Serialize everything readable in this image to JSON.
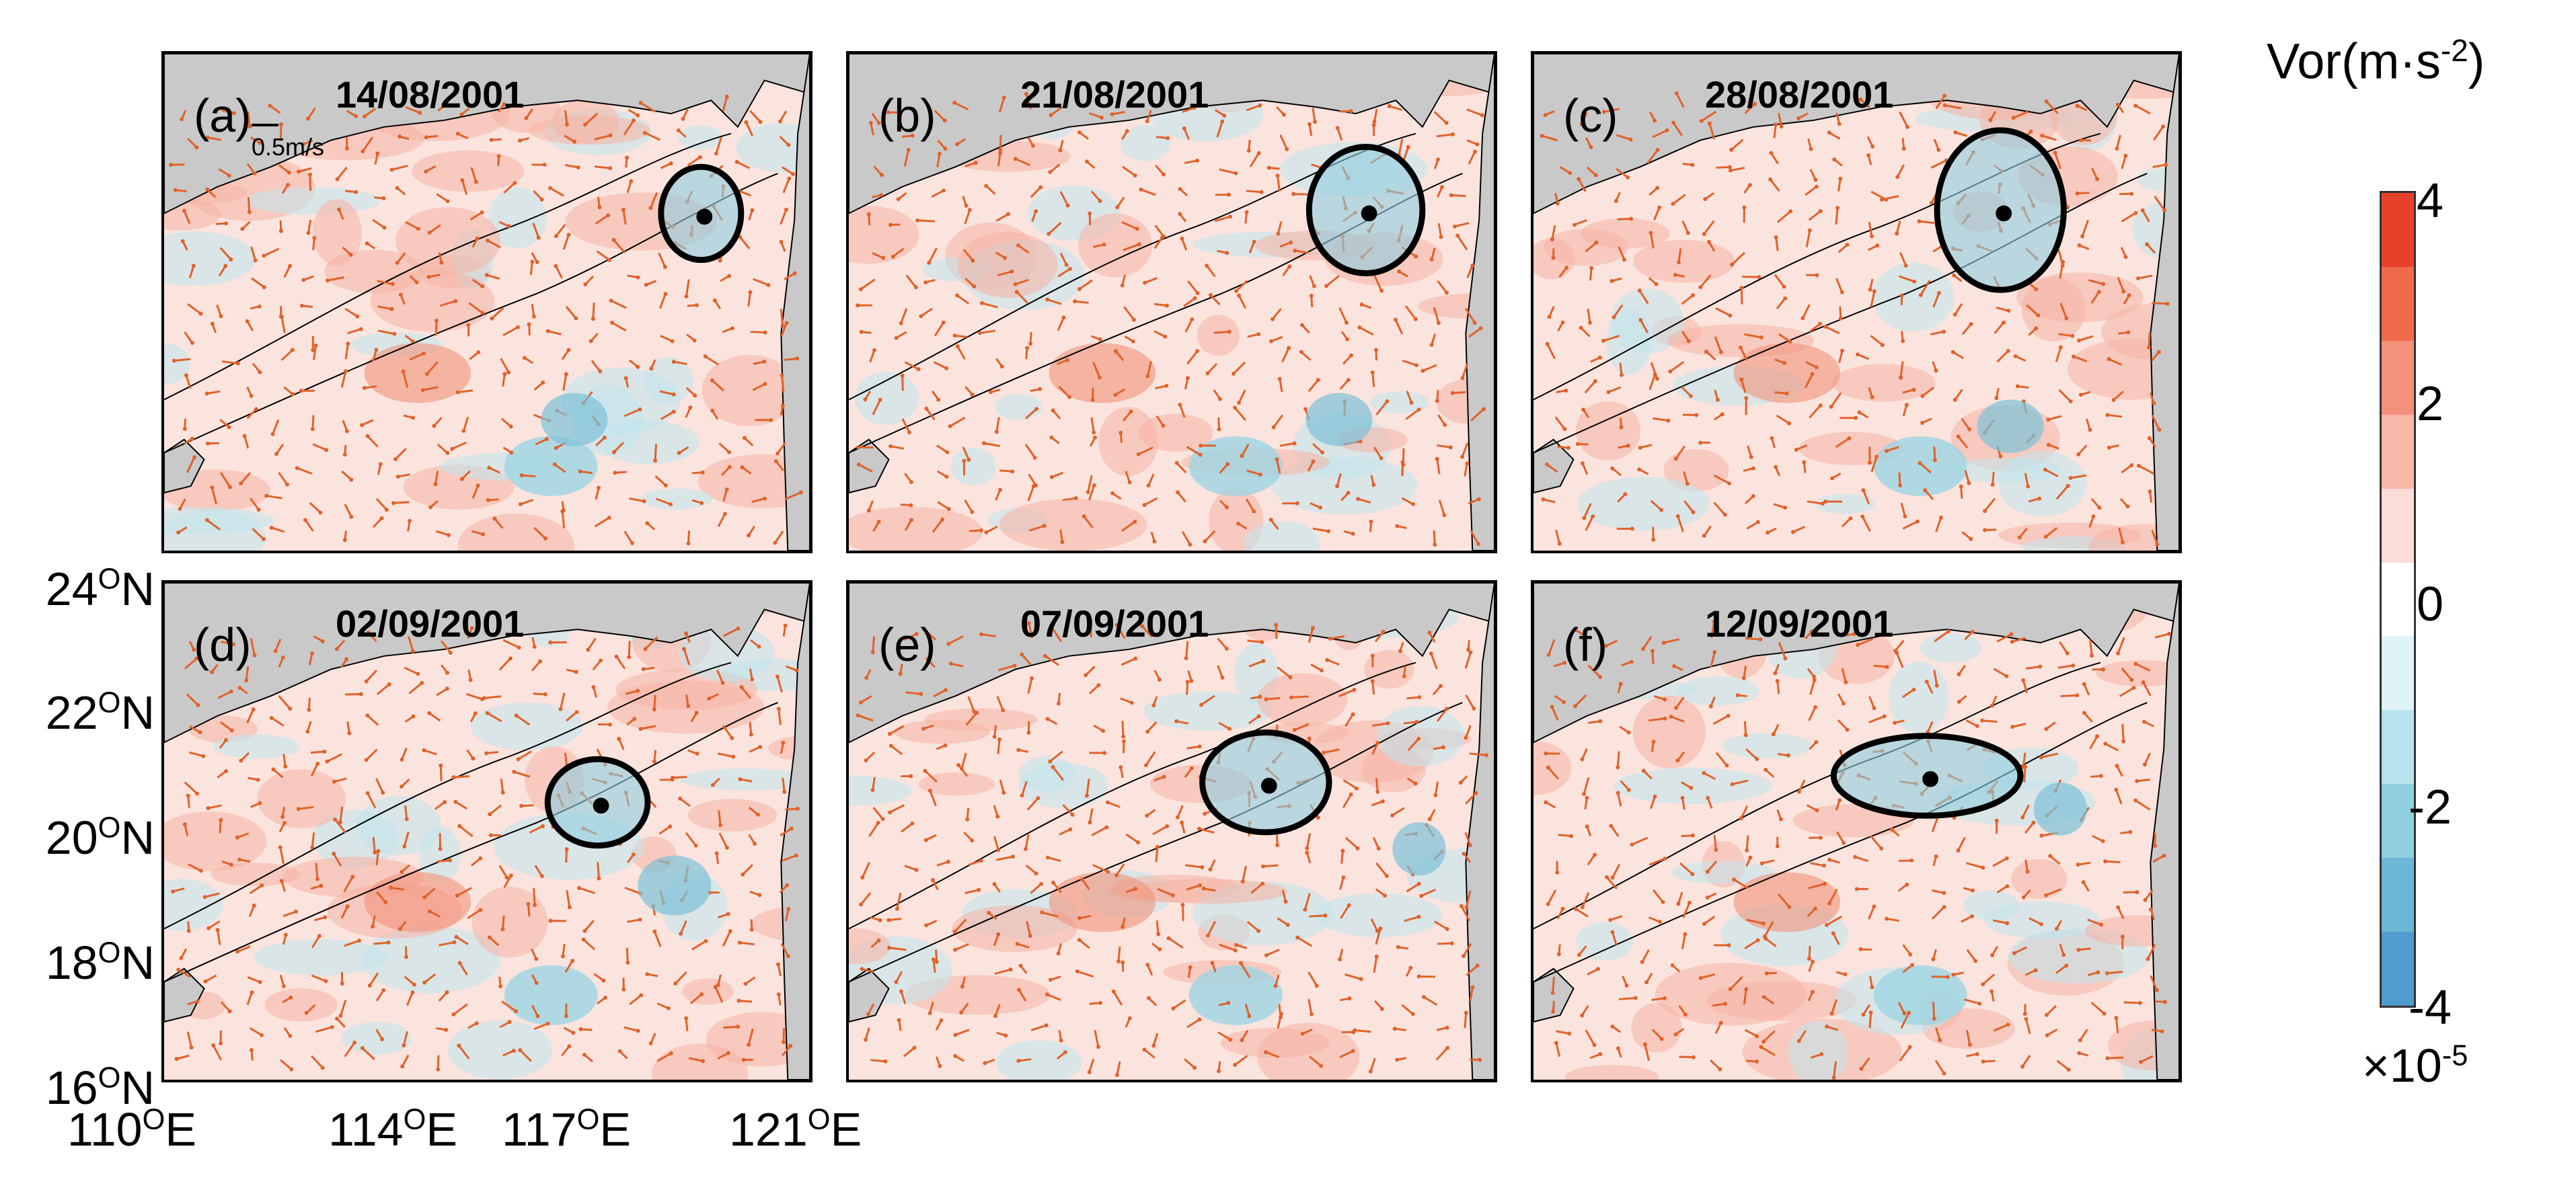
{
  "colorbar": {
    "title": "Vor(m·s",
    "title_exp": "-2",
    "title_end": ")",
    "ticks": [
      "4",
      "2",
      "0",
      "-2",
      "-4"
    ],
    "multiplier": "×10",
    "multiplier_exp": "-5",
    "colors": [
      "#e8412b",
      "#f06a4c",
      "#f4917a",
      "#f8b8aa",
      "#fbdcd6",
      "#ffffff",
      "#dff3f8",
      "#b9e3ec",
      "#91cfde",
      "#6cb6d6",
      "#4f9ccd"
    ]
  },
  "panels": [
    {
      "label": "(a)",
      "date": "14/08/2001",
      "scale": "0.5m/s"
    },
    {
      "label": "(b)",
      "date": "21/08/2001"
    },
    {
      "label": "(c)",
      "date": "28/08/2001"
    },
    {
      "label": "(d)",
      "date": "02/09/2001"
    },
    {
      "label": "(e)",
      "date": "07/09/2001"
    },
    {
      "label": "(f)",
      "date": "12/09/2001"
    }
  ],
  "axes": {
    "y_ticks": [
      {
        "deg": "24",
        "sup": "O",
        "hemi": "N"
      },
      {
        "deg": "22",
        "sup": "O",
        "hemi": "N"
      },
      {
        "deg": "20",
        "sup": "O",
        "hemi": "N"
      },
      {
        "deg": "18",
        "sup": "O",
        "hemi": "N"
      },
      {
        "deg": "16",
        "sup": "O",
        "hemi": "N"
      }
    ],
    "x_ticks": [
      {
        "deg": "110",
        "sup": "O",
        "hemi": "E"
      },
      {
        "deg": "114",
        "sup": "O",
        "hemi": "E"
      },
      {
        "deg": "117",
        "sup": "O",
        "hemi": "E"
      },
      {
        "deg": "121",
        "sup": "O",
        "hemi": "E"
      }
    ]
  }
}
